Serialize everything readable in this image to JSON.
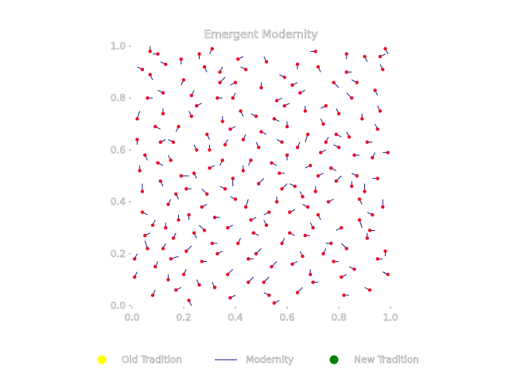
{
  "colors": {
    "point": "#e8102e",
    "segment": "#1a1a8c",
    "old": "#ffff00",
    "new": "#008000"
  },
  "chart_data": {
    "type": "scatter",
    "title": "Emergent Modernity",
    "xlim": [
      0.0,
      1.0
    ],
    "ylim": [
      0.0,
      1.0
    ],
    "x_ticks": [
      "0.0",
      "0.2",
      "0.4",
      "0.6",
      "0.8",
      "1.0"
    ],
    "y_ticks": [
      "0.0",
      "0.2",
      "0.4",
      "0.6",
      "0.8",
      "1.0"
    ],
    "grid": false,
    "legend_position": "bottom",
    "legend": [
      {
        "label": "Old Tradition",
        "marker": "circle",
        "color": "#ffff00"
      },
      {
        "label": "Modernity",
        "marker": "line",
        "color": "#1a1a8c"
      },
      {
        "label": "New Tradition",
        "marker": "circle",
        "color": "#008000"
      }
    ],
    "points": [
      [
        0.06,
        0.22,
        -0.01,
        0.03
      ],
      [
        0.28,
        0.92,
        0.01,
        -0.02
      ],
      [
        0.4,
        0.86,
        -0.02,
        -0.01
      ],
      [
        0.96,
        0.96,
        0.02,
        0.01
      ],
      [
        0.66,
        0.42,
        -0.01,
        0.02
      ],
      [
        0.31,
        0.24,
        0.02,
        0.0
      ],
      [
        0.02,
        0.72,
        0.01,
        0.03
      ],
      [
        0.58,
        0.63,
        -0.02,
        0.01
      ],
      [
        0.22,
        0.35,
        0.0,
        -0.02
      ],
      [
        0.79,
        0.48,
        0.02,
        0.02
      ],
      [
        0.1,
        0.97,
        -0.02,
        0.0
      ],
      [
        0.88,
        0.33,
        0.01,
        -0.03
      ],
      [
        0.7,
        0.09,
        0.02,
        0.0
      ],
      [
        0.46,
        0.56,
        -0.01,
        -0.02
      ],
      [
        0.15,
        0.18,
        0.03,
        0.01
      ],
      [
        0.35,
        0.71,
        0.0,
        0.02
      ],
      [
        0.53,
        0.04,
        -0.02,
        0.01
      ],
      [
        0.93,
        0.57,
        0.01,
        0.02
      ],
      [
        0.75,
        0.77,
        -0.02,
        -0.01
      ],
      [
        0.04,
        0.44,
        0.0,
        0.03
      ],
      [
        0.61,
        0.28,
        0.02,
        -0.01
      ],
      [
        0.25,
        0.6,
        -0.01,
        0.02
      ],
      [
        0.83,
        0.9,
        0.02,
        0.0
      ],
      [
        0.44,
        0.38,
        0.01,
        0.03
      ],
      [
        0.12,
        0.82,
        -0.02,
        0.01
      ],
      [
        0.98,
        0.21,
        0.0,
        -0.02
      ],
      [
        0.37,
        0.12,
        0.02,
        0.02
      ],
      [
        0.68,
        0.66,
        -0.01,
        -0.03
      ],
      [
        0.19,
        0.5,
        0.03,
        0.0
      ],
      [
        0.5,
        0.84,
        0.0,
        0.02
      ],
      [
        0.86,
        0.14,
        -0.02,
        0.01
      ],
      [
        0.08,
        0.31,
        0.01,
        0.02
      ],
      [
        0.57,
        0.51,
        0.02,
        0.0
      ],
      [
        0.29,
        0.43,
        -0.02,
        0.02
      ],
      [
        0.72,
        0.35,
        0.01,
        -0.02
      ],
      [
        0.41,
        0.95,
        0.02,
        0.01
      ],
      [
        0.95,
        0.68,
        -0.01,
        0.02
      ],
      [
        0.17,
        0.06,
        0.02,
        0.01
      ],
      [
        0.64,
        0.93,
        0.0,
        -0.02
      ],
      [
        0.33,
        0.8,
        0.02,
        0.0
      ],
      [
        0.8,
        0.61,
        -0.02,
        0.01
      ],
      [
        0.05,
        0.58,
        0.01,
        -0.02
      ],
      [
        0.48,
        0.2,
        0.02,
        0.02
      ],
      [
        0.9,
        0.44,
        0.0,
        0.03
      ],
      [
        0.23,
        0.73,
        -0.01,
        0.02
      ],
      [
        0.55,
        0.72,
        0.02,
        -0.01
      ],
      [
        0.14,
        0.39,
        0.01,
        0.02
      ],
      [
        0.77,
        0.24,
        -0.02,
        0.0
      ],
      [
        0.39,
        0.49,
        0.0,
        -0.03
      ],
      [
        0.62,
        0.16,
        0.02,
        0.01
      ],
      [
        0.01,
        0.11,
        0.01,
        0.02
      ],
      [
        0.85,
        0.8,
        -0.02,
        0.02
      ],
      [
        0.27,
        0.17,
        0.02,
        0.0
      ],
      [
        0.52,
        0.31,
        -0.01,
        0.02
      ],
      [
        0.97,
        0.38,
        0.0,
        0.03
      ],
      [
        0.11,
        0.63,
        0.02,
        0.01
      ],
      [
        0.69,
        0.54,
        -0.02,
        -0.01
      ],
      [
        0.36,
        0.62,
        0.01,
        0.02
      ],
      [
        0.82,
        0.04,
        0.02,
        0.0
      ],
      [
        0.2,
        0.87,
        -0.01,
        -0.02
      ],
      [
        0.45,
        0.09,
        0.02,
        0.02
      ],
      [
        0.59,
        0.88,
        -0.02,
        0.01
      ],
      [
        0.07,
        0.89,
        0.01,
        -0.02
      ],
      [
        0.91,
        0.26,
        0.0,
        0.02
      ],
      [
        0.32,
        0.34,
        0.02,
        0.0
      ],
      [
        0.74,
        0.7,
        -0.01,
        0.02
      ],
      [
        0.16,
        0.26,
        0.01,
        0.02
      ],
      [
        0.5,
        0.67,
        0.02,
        -0.01
      ],
      [
        0.87,
        0.5,
        -0.02,
        0.01
      ],
      [
        0.03,
        0.52,
        0.0,
        0.02
      ],
      [
        0.65,
        0.82,
        0.02,
        0.01
      ],
      [
        0.26,
        0.08,
        -0.01,
        0.02
      ],
      [
        0.42,
        0.75,
        0.01,
        -0.02
      ],
      [
        0.78,
        0.17,
        0.02,
        0.0
      ],
      [
        0.13,
        0.93,
        -0.02,
        0.01
      ],
      [
        0.56,
        0.4,
        0.0,
        0.02
      ],
      [
        0.94,
        0.83,
        0.01,
        -0.02
      ],
      [
        0.3,
        0.53,
        0.02,
        0.01
      ],
      [
        0.71,
        0.98,
        -0.02,
        0.0
      ],
      [
        0.09,
        0.15,
        0.01,
        0.02
      ],
      [
        0.47,
        0.28,
        0.02,
        -0.01
      ],
      [
        0.84,
        0.65,
        -0.01,
        0.02
      ],
      [
        0.21,
        0.45,
        0.02,
        0.0
      ],
      [
        0.6,
        0.58,
        0.0,
        -0.02
      ],
      [
        0.99,
        0.12,
        -0.02,
        0.01
      ],
      [
        0.34,
        0.9,
        0.01,
        0.02
      ],
      [
        0.76,
        0.4,
        0.02,
        0.01
      ],
      [
        0.18,
        0.69,
        -0.01,
        -0.02
      ],
      [
        0.54,
        0.15,
        0.02,
        0.02
      ],
      [
        0.89,
        0.72,
        0.0,
        0.02
      ],
      [
        0.24,
        0.28,
        0.01,
        -0.02
      ],
      [
        0.63,
        0.46,
        -0.02,
        0.01
      ],
      [
        0.06,
        0.8,
        0.02,
        0.0
      ],
      [
        0.43,
        0.64,
        0.01,
        0.02
      ],
      [
        0.81,
        0.3,
        -0.02,
        -0.01
      ],
      [
        0.38,
        0.03,
        0.02,
        0.01
      ],
      [
        0.67,
        0.75,
        0.0,
        0.02
      ],
      [
        0.11,
        0.48,
        0.01,
        -0.02
      ],
      [
        0.92,
        0.06,
        -0.02,
        0.01
      ],
      [
        0.49,
        0.47,
        0.02,
        0.02
      ],
      [
        0.26,
        0.97,
        0.0,
        -0.02
      ],
      [
        0.73,
        0.59,
        0.02,
        0.01
      ],
      [
        0.15,
        0.56,
        -0.01,
        0.02
      ],
      [
        0.58,
        0.24,
        0.01,
        0.02
      ],
      [
        0.95,
        0.49,
        -0.02,
        0.0
      ],
      [
        0.33,
        0.2,
        0.02,
        0.01
      ],
      [
        0.69,
        0.12,
        0.0,
        0.02
      ],
      [
        0.04,
        0.36,
        0.02,
        -0.01
      ],
      [
        0.52,
        0.94,
        -0.01,
        0.02
      ],
      [
        0.86,
        0.58,
        0.02,
        0.0
      ],
      [
        0.2,
        0.12,
        0.01,
        0.02
      ],
      [
        0.4,
        0.41,
        -0.02,
        0.01
      ],
      [
        0.78,
        0.86,
        0.02,
        -0.02
      ],
      [
        0.12,
        0.74,
        0.0,
        0.02
      ],
      [
        0.61,
        0.36,
        0.02,
        0.01
      ],
      [
        0.97,
        0.91,
        -0.01,
        0.02
      ],
      [
        0.29,
        0.66,
        0.01,
        -0.02
      ],
      [
        0.45,
        0.18,
        0.02,
        0.0
      ],
      [
        0.83,
        0.22,
        -0.02,
        0.02
      ],
      [
        0.08,
        0.04,
        0.01,
        0.02
      ],
      [
        0.56,
        0.79,
        0.02,
        0.01
      ],
      [
        0.35,
        0.56,
        -0.01,
        -0.02
      ],
      [
        0.72,
        0.5,
        0.02,
        0.01
      ],
      [
        0.18,
        0.33,
        0.0,
        0.02
      ],
      [
        0.9,
        0.96,
        0.01,
        -0.02
      ],
      [
        0.48,
        0.73,
        -0.02,
        0.01
      ],
      [
        0.64,
        0.05,
        0.02,
        0.02
      ],
      [
        0.02,
        0.64,
        0.0,
        -0.02
      ],
      [
        0.37,
        0.3,
        0.02,
        0.01
      ],
      [
        0.8,
        0.74,
        -0.01,
        0.02
      ],
      [
        0.23,
        0.81,
        0.01,
        0.02
      ],
      [
        0.54,
        0.55,
        0.02,
        -0.01
      ],
      [
        0.93,
        0.35,
        -0.02,
        0.01
      ],
      [
        0.14,
        0.1,
        0.0,
        0.02
      ],
      [
        0.67,
        0.27,
        0.02,
        0.0
      ],
      [
        0.31,
        0.99,
        -0.01,
        -0.02
      ],
      [
        0.75,
        0.63,
        0.01,
        0.02
      ],
      [
        0.05,
        0.27,
        0.02,
        0.01
      ],
      [
        0.44,
        0.91,
        -0.02,
        0.01
      ],
      [
        0.88,
        0.41,
        0.01,
        -0.02
      ],
      [
        0.21,
        0.21,
        0.02,
        0.02
      ],
      [
        0.6,
        0.69,
        0.0,
        0.02
      ],
      [
        0.99,
        0.59,
        -0.02,
        0.0
      ],
      [
        0.39,
        0.8,
        0.01,
        0.02
      ],
      [
        0.1,
        0.55,
        0.02,
        -0.01
      ],
      [
        0.7,
        0.3,
        -0.01,
        0.02
      ],
      [
        0.27,
        0.38,
        0.02,
        0.01
      ],
      [
        0.83,
        0.97,
        0.0,
        -0.02
      ],
      [
        0.51,
        0.09,
        0.02,
        0.02
      ],
      [
        0.16,
        0.63,
        -0.02,
        0.01
      ],
      [
        0.64,
        0.61,
        0.01,
        0.02
      ],
      [
        0.95,
        0.18,
        0.02,
        0.0
      ],
      [
        0.32,
        0.07,
        -0.01,
        0.02
      ],
      [
        0.77,
        0.53,
        0.02,
        -0.01
      ],
      [
        0.07,
        0.98,
        0.0,
        0.02
      ],
      [
        0.46,
        0.33,
        0.02,
        0.01
      ],
      [
        0.87,
        0.86,
        -0.02,
        0.01
      ],
      [
        0.24,
        0.51,
        0.01,
        -0.02
      ],
      [
        0.58,
        0.45,
        0.02,
        0.02
      ],
      [
        0.13,
        0.3,
        0.0,
        0.02
      ],
      [
        0.72,
        0.92,
        0.01,
        -0.02
      ],
      [
        0.36,
        0.45,
        -0.02,
        0.01
      ],
      [
        0.91,
        0.63,
        0.02,
        0.0
      ],
      [
        0.01,
        0.18,
        0.01,
        0.02
      ],
      [
        0.49,
        0.61,
        -0.01,
        0.02
      ],
      [
        0.81,
        0.11,
        0.02,
        0.01
      ],
      [
        0.19,
        0.95,
        0.0,
        -0.02
      ],
      [
        0.62,
        0.85,
        0.02,
        0.01
      ],
      [
        0.28,
        0.29,
        -0.02,
        0.02
      ],
      [
        0.74,
        0.2,
        0.01,
        0.02
      ],
      [
        0.09,
        0.69,
        0.02,
        -0.01
      ],
      [
        0.43,
        0.52,
        0.0,
        0.02
      ],
      [
        0.96,
        0.75,
        -0.01,
        0.02
      ],
      [
        0.55,
        0.01,
        0.02,
        0.01
      ],
      [
        0.17,
        0.43,
        0.01,
        -0.02
      ],
      [
        0.68,
        0.38,
        -0.02,
        0.01
      ],
      [
        0.34,
        0.86,
        0.02,
        0.02
      ],
      [
        0.85,
        0.46,
        0.0,
        0.02
      ],
      [
        0.22,
        0.02,
        0.01,
        -0.02
      ],
      [
        0.59,
        0.77,
        0.02,
        0.01
      ],
      [
        0.04,
        0.91,
        -0.02,
        0.01
      ],
      [
        0.41,
        0.24,
        0.01,
        0.02
      ],
      [
        0.79,
        0.66,
        0.02,
        -0.01
      ],
      [
        0.3,
        0.6,
        0.0,
        0.02
      ],
      [
        0.66,
        0.19,
        -0.01,
        0.02
      ],
      [
        0.92,
        0.29,
        0.02,
        0.0
      ],
      [
        0.12,
        0.22,
        0.01,
        0.02
      ],
      [
        0.53,
        0.36,
        -0.02,
        -0.01
      ],
      [
        0.25,
        0.77,
        0.02,
        0.01
      ],
      [
        0.71,
        0.44,
        0.0,
        0.02
      ],
      [
        0.98,
        0.99,
        0.01,
        -0.02
      ],
      [
        0.38,
        0.68,
        0.02,
        0.01
      ]
    ]
  }
}
